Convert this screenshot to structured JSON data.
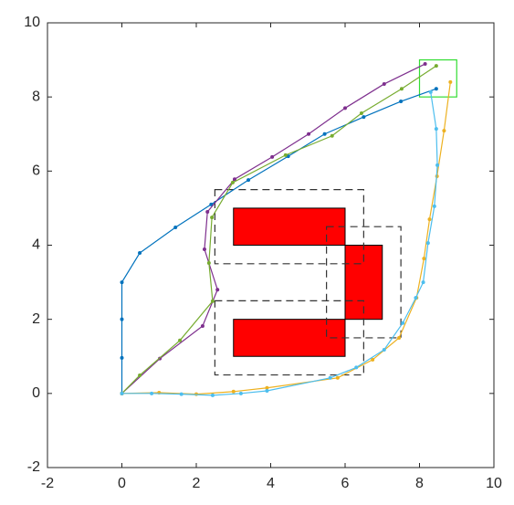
{
  "chart_data": {
    "type": "line",
    "xlim": [
      -2,
      10
    ],
    "ylim": [
      -2,
      10
    ],
    "xticks": [
      -2,
      0,
      2,
      4,
      6,
      8,
      10
    ],
    "yticks": [
      -2,
      0,
      2,
      4,
      6,
      8,
      10
    ],
    "series": [
      {
        "color": "#0072BD",
        "x": [
          0,
          0,
          0,
          0,
          0.48,
          1.44,
          2.4,
          3.4,
          4.47,
          5.45,
          6.5,
          7.5,
          8.45
        ],
        "y": [
          0,
          0.96,
          2,
          3,
          3.79,
          4.48,
          5.1,
          5.76,
          6.4,
          7.0,
          7.46,
          7.88,
          8.22
        ]
      },
      {
        "color": "#7E2F8E",
        "x": [
          0,
          1.02,
          2.17,
          2.57,
          2.22,
          2.3,
          3.03,
          4.04,
          5.02,
          6.0,
          7.05,
          8.15
        ],
        "y": [
          0,
          0.94,
          1.82,
          2.8,
          3.89,
          4.9,
          5.78,
          6.38,
          7.0,
          7.7,
          8.35,
          8.89
        ]
      },
      {
        "color": "#77AC30",
        "x": [
          0,
          0.48,
          1.56,
          2.44,
          2.34,
          2.42,
          2.98,
          4.4,
          5.65,
          6.44,
          7.52,
          8.45
        ],
        "y": [
          0,
          0.49,
          1.43,
          2.49,
          3.52,
          4.75,
          5.69,
          6.43,
          6.95,
          7.56,
          8.22,
          8.84
        ]
      },
      {
        "color": "#EDB120",
        "x": [
          0,
          1,
          2,
          3,
          3.9,
          5.8,
          6.74,
          7.45,
          7.92,
          8.12,
          8.27,
          8.47,
          8.66,
          8.83
        ],
        "y": [
          0,
          0.02,
          -0.02,
          0.05,
          0.15,
          0.42,
          0.91,
          1.5,
          2.58,
          3.64,
          4.7,
          5.86,
          7.09,
          8.4
        ]
      },
      {
        "color": "#4DBEEE",
        "x": [
          0,
          0.8,
          1.6,
          2.44,
          3.2,
          3.9,
          5.6,
          6.3,
          7.05,
          7.55,
          7.9,
          8.1,
          8.23,
          8.4,
          8.48,
          8.45,
          8.3
        ],
        "y": [
          0,
          0,
          -0.02,
          -0.05,
          0,
          0.07,
          0.42,
          0.7,
          1.18,
          1.9,
          2.58,
          3.0,
          4.06,
          5.05,
          6.16,
          7.14,
          8.13
        ]
      }
    ],
    "obstacle_color": "#FF0000",
    "obstacles": [
      {
        "x0": 3,
        "x1": 6,
        "y0": 4,
        "y1": 5
      },
      {
        "x0": 6,
        "x1": 7,
        "y0": 2,
        "y1": 4
      },
      {
        "x0": 3,
        "x1": 6,
        "y0": 1,
        "y1": 2
      }
    ],
    "zones": [
      {
        "x0": 2.5,
        "x1": 6.5,
        "y0": 3.5,
        "y1": 5.5
      },
      {
        "x0": 5.5,
        "x1": 7.5,
        "y0": 1.5,
        "y1": 4.5
      },
      {
        "x0": 2.5,
        "x1": 6.5,
        "y0": 0.5,
        "y1": 2.5
      }
    ],
    "goal_color": "#33DD33",
    "goal": {
      "x0": 8,
      "x1": 9,
      "y0": 8,
      "y1": 9
    }
  }
}
